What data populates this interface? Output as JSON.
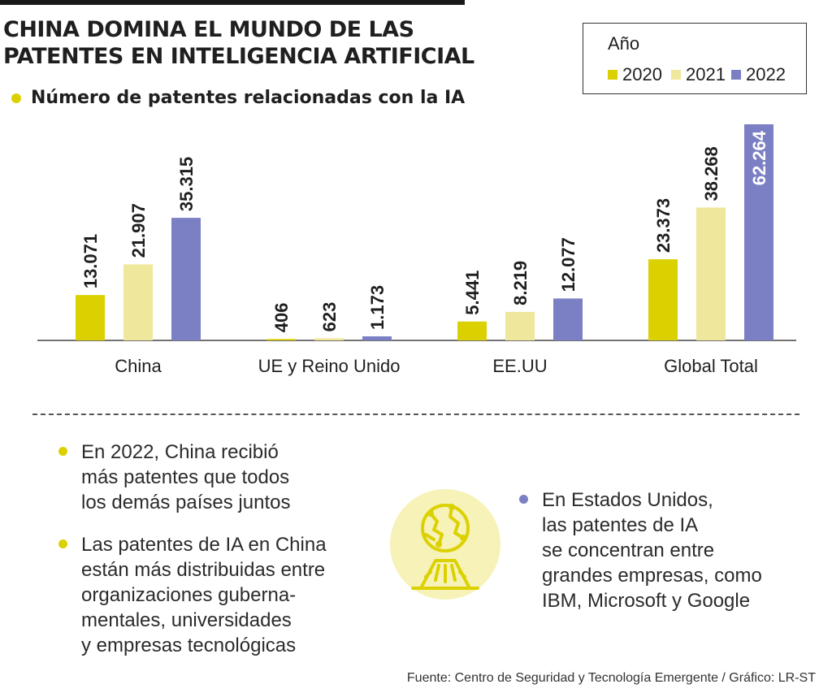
{
  "header": {
    "title_line1": "CHINA DOMINA EL MUNDO DE LAS",
    "title_line2": "PATENTES EN INTELIGENCIA ARTIFICIAL",
    "subtitle": "Número de patentes relacionadas con la IA"
  },
  "legend": {
    "title": "Año",
    "items": [
      {
        "label": "2020",
        "color": "#dcd100"
      },
      {
        "label": "2021",
        "color": "#efe79b"
      },
      {
        "label": "2022",
        "color": "#7b80c4"
      }
    ]
  },
  "chart_data": {
    "type": "bar",
    "categories": [
      "China",
      "UE y Reino Unido",
      "EE.UU",
      "Global Total"
    ],
    "series": [
      {
        "name": "2020",
        "values": [
          13071,
          406,
          5441,
          23373
        ],
        "labels": [
          "13.071",
          "406",
          "5.441",
          "23.373"
        ]
      },
      {
        "name": "2021",
        "values": [
          21907,
          623,
          8219,
          38268
        ],
        "labels": [
          "21.907",
          "623",
          "8.219",
          "38.268"
        ]
      },
      {
        "name": "2022",
        "values": [
          35315,
          1173,
          12077,
          62264
        ],
        "labels": [
          "35.315",
          "1.173",
          "12.077",
          "62.264"
        ]
      }
    ],
    "colors": [
      "#dcd100",
      "#efe79b",
      "#7b80c4"
    ],
    "ylim": [
      0,
      62264
    ],
    "legend_position": "top-right",
    "grid": false
  },
  "notes": {
    "note1": [
      "En 2022, China recibió",
      "más patentes que todos",
      "los demás países juntos"
    ],
    "note2": [
      "Las patentes de IA en China",
      "están más distribuidas entre",
      "organizaciones guberna-",
      "mentales, universidades",
      "y empresas tecnológicas"
    ],
    "note3": [
      "En Estados Unidos,",
      "las patentes de IA",
      "se concentran entre",
      "grandes empresas, como",
      "IBM, Microsoft y Google"
    ]
  },
  "icons": {
    "illustration": "globe-hologram-icon"
  },
  "source": "Fuente: Centro de Seguridad y Tecnología Emergente / Gráfico: LR-ST"
}
